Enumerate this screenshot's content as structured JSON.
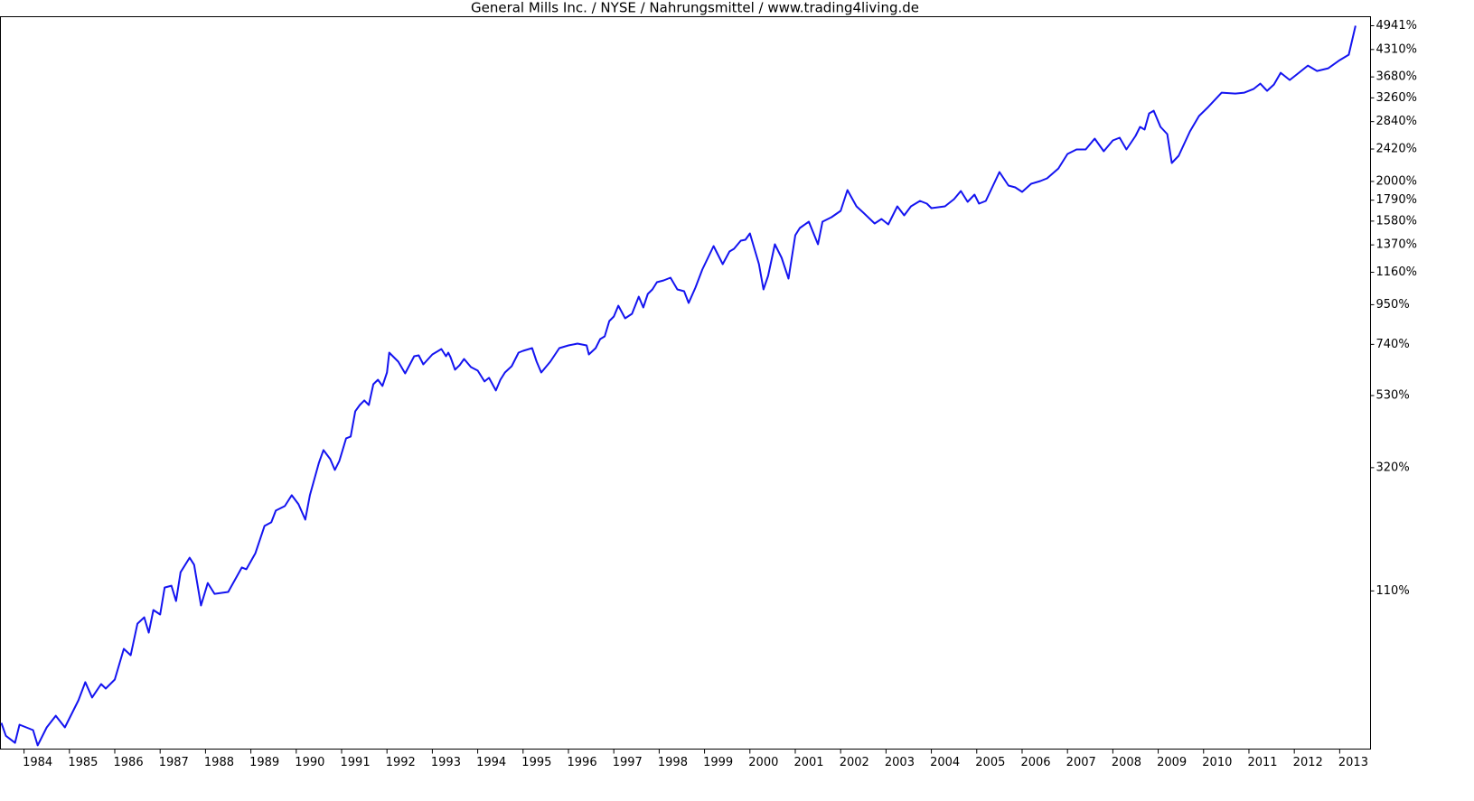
{
  "chart_data": {
    "type": "line",
    "title": "General Mills Inc. / NYSE / Nahrungsmittel / www.trading4living.de",
    "color": "#1414f0",
    "yscale": "log",
    "log_offset": 100,
    "xlim": [
      1983.48,
      2013.68
    ],
    "xticks": [
      1984,
      1985,
      1986,
      1987,
      1988,
      1989,
      1990,
      1991,
      1992,
      1993,
      1994,
      1995,
      1996,
      1997,
      1998,
      1999,
      2000,
      2001,
      2002,
      2003,
      2004,
      2005,
      2006,
      2007,
      2008,
      2009,
      2010,
      2011,
      2012,
      2013
    ],
    "ylim": [
      -13.7,
      5203
    ],
    "yticks": [
      {
        "value": 110,
        "label": "110%"
      },
      {
        "value": 320,
        "label": "320%"
      },
      {
        "value": 530,
        "label": "530%"
      },
      {
        "value": 740,
        "label": "740%"
      },
      {
        "value": 950,
        "label": "950%"
      },
      {
        "value": 1160,
        "label": "1160%"
      },
      {
        "value": 1370,
        "label": "1370%"
      },
      {
        "value": 1580,
        "label": "1580%"
      },
      {
        "value": 1790,
        "label": "1790%"
      },
      {
        "value": 2000,
        "label": "2000%"
      },
      {
        "value": 2420,
        "label": "2420%"
      },
      {
        "value": 2840,
        "label": "2840%"
      },
      {
        "value": 3260,
        "label": "3260%"
      },
      {
        "value": 3680,
        "label": "3680%"
      },
      {
        "value": 4310,
        "label": "4310%"
      },
      {
        "value": 4941,
        "label": "4941%"
      }
    ],
    "x": [
      1983.5,
      1983.6,
      1983.8,
      1983.9,
      1984.2,
      1984.3,
      1984.5,
      1984.7,
      1984.9,
      1985.1,
      1985.2,
      1985.35,
      1985.5,
      1985.7,
      1985.8,
      1986.0,
      1986.2,
      1986.35,
      1986.5,
      1986.65,
      1986.75,
      1986.85,
      1987.0,
      1987.1,
      1987.25,
      1987.35,
      1987.45,
      1987.65,
      1987.75,
      1987.9,
      1988.05,
      1988.2,
      1988.5,
      1988.8,
      1988.9,
      1989.1,
      1989.3,
      1989.45,
      1989.55,
      1989.75,
      1989.9,
      1990.05,
      1990.2,
      1990.3,
      1990.5,
      1990.6,
      1990.75,
      1990.85,
      1990.95,
      1991.1,
      1991.2,
      1991.3,
      1991.4,
      1991.5,
      1991.6,
      1991.7,
      1991.8,
      1991.9,
      1992.0,
      1992.05,
      1992.25,
      1992.4,
      1992.6,
      1992.7,
      1992.8,
      1993.0,
      1993.2,
      1993.3,
      1993.35,
      1993.4,
      1993.5,
      1993.6,
      1993.7,
      1993.85,
      1994.0,
      1994.15,
      1994.25,
      1994.4,
      1994.5,
      1994.6,
      1994.75,
      1994.9,
      1995.0,
      1995.2,
      1995.3,
      1995.4,
      1995.6,
      1995.8,
      1996.0,
      1996.2,
      1996.4,
      1996.45,
      1996.6,
      1996.7,
      1996.8,
      1996.9,
      1997.0,
      1997.1,
      1997.25,
      1997.4,
      1997.55,
      1997.65,
      1997.75,
      1997.85,
      1997.95,
      1998.1,
      1998.25,
      1998.4,
      1998.55,
      1998.65,
      1998.8,
      1998.95,
      1999.2,
      1999.4,
      1999.55,
      1999.65,
      1999.8,
      1999.9,
      2000.0,
      2000.2,
      2000.3,
      2000.4,
      2000.55,
      2000.7,
      2000.85,
      2001.0,
      2001.1,
      2001.3,
      2001.5,
      2001.6,
      2001.8,
      2002.0,
      2002.15,
      2002.35,
      2002.5,
      2002.75,
      2002.9,
      2003.05,
      2003.25,
      2003.4,
      2003.55,
      2003.75,
      2003.9,
      2004.0,
      2004.3,
      2004.5,
      2004.65,
      2004.8,
      2004.95,
      2005.05,
      2005.2,
      2005.5,
      2005.7,
      2005.85,
      2006.0,
      2006.2,
      2006.4,
      2006.55,
      2006.8,
      2007.0,
      2007.2,
      2007.4,
      2007.6,
      2007.8,
      2008.0,
      2008.15,
      2008.3,
      2008.5,
      2008.6,
      2008.7,
      2008.8,
      2008.9,
      2009.05,
      2009.2,
      2009.3,
      2009.45,
      2009.7,
      2009.9,
      2010.1,
      2010.4,
      2010.7,
      2010.9,
      2011.1,
      2011.25,
      2011.4,
      2011.55,
      2011.7,
      2011.9,
      2012.1,
      2012.3,
      2012.5,
      2012.75,
      2013.0,
      2013.2,
      2013.35
    ],
    "values": [
      0,
      -7,
      -10.6,
      -1,
      -4,
      -11.9,
      -2.5,
      4.1,
      -2.5,
      7.9,
      13.5,
      25.7,
      15.3,
      24.4,
      21.3,
      27.6,
      51.6,
      46.3,
      74.7,
      81,
      66.1,
      88.6,
      83.9,
      114.1,
      116.3,
      98.4,
      133.3,
      153.1,
      143.3,
      93.5,
      119.6,
      106.6,
      108.8,
      139.6,
      137.2,
      159.6,
      202.6,
      208.8,
      229.9,
      238.4,
      259.7,
      241.9,
      213.6,
      259.7,
      331.8,
      363.6,
      340.7,
      314.6,
      336.2,
      395.2,
      400.3,
      476.7,
      497.5,
      512.9,
      497.5,
      571.5,
      588.8,
      564.8,
      617.3,
      702.1,
      662.3,
      613.7,
      685.9,
      690,
      650.9,
      693.9,
      718.5,
      685.9,
      702.1,
      681.9,
      628.4,
      647,
      674.1,
      639.5,
      624.7,
      581.9,
      595.9,
      548.1,
      588.8,
      617.3,
      643.3,
      702.1,
      710.3,
      722.7,
      662.3,
      617.3,
      662.3,
      722.7,
      735.3,
      743.8,
      735.3,
      693.9,
      722.7,
      765.5,
      778.8,
      858.1,
      882.6,
      944.3,
      872.7,
      897.7,
      998.7,
      933.8,
      1015.7,
      1044.3,
      1091.8,
      1103.9,
      1122.4,
      1044.3,
      1032.7,
      960.5,
      1056.1,
      1179.5,
      1360.1,
      1219.2,
      1316.2,
      1338.1,
      1405.1,
      1412.8,
      1467.7,
      1219.2,
      1044.3,
      1134.8,
      1374.8,
      1266.9,
      1116.1,
      1451.7,
      1516,
      1574.3,
      1374.8,
      1574.3,
      1617.4,
      1679.8,
      1900,
      1725.3,
      1661.7,
      1557.5,
      1600.2,
      1549.1,
      1725.3,
      1635,
      1725.3,
      1781.8,
      1753.5,
      1707.1,
      1725.3,
      1801.1,
      1890,
      1772.4,
      1850.1,
      1753.5,
      1781.8,
      2113.8,
      1951.5,
      1930.7,
      1880.1,
      1972.5,
      2004.4,
      2036.8,
      2159,
      2350.5,
      2413.3,
      2413.3,
      2571.2,
      2388.1,
      2544.3,
      2584.9,
      2413.3,
      2612.4,
      2753.5,
      2710.4,
      2979.2,
      3026.5,
      2753.5,
      2639.9,
      2229.1,
      2325.7,
      2682.1,
      2932.8,
      3090.5,
      3360.4,
      3343,
      3360.4,
      3431.2,
      3540.6,
      3395.9,
      3522.1,
      3769,
      3615.1,
      3769,
      3929.5,
      3808.7,
      3868.6,
      4054.2,
      4182.5,
      4941
    ]
  }
}
